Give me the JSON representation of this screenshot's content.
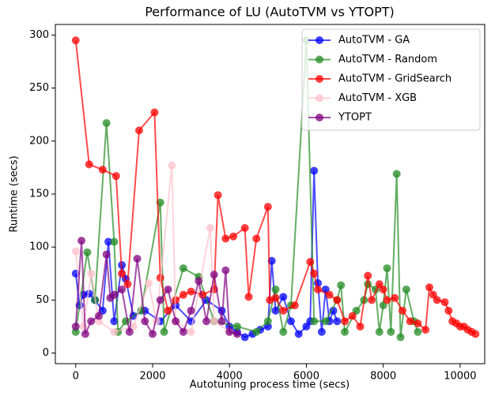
{
  "chart_data": {
    "type": "line",
    "title": "Performance of LU (AutoTVM vs YTOPT)",
    "x_label": "Autotuning process time (secs)",
    "y_label": "Runtime (secs)",
    "xlim": [
      -530,
      10640
    ],
    "ylim": [
      -10,
      310
    ],
    "xticks": [
      0,
      2000,
      4000,
      6000,
      8000,
      10000
    ],
    "yticks": [
      0,
      50,
      100,
      150,
      200,
      250,
      300
    ],
    "legend": "upper right",
    "series": [
      {
        "name": "AutoTVM - GA",
        "color": "#0000ff",
        "x": [
          0,
          100,
          200,
          350,
          500,
          700,
          850,
          1000,
          1200,
          1300,
          1500,
          1800,
          2200,
          2600,
          3000,
          3400,
          3800,
          4000,
          4200,
          4400,
          4600,
          4800,
          5000,
          5100,
          5200,
          5400,
          5600,
          5800,
          6000,
          6100,
          6200,
          6300,
          6400,
          6500,
          6600,
          6700,
          6800
        ],
        "values": [
          75,
          45,
          55,
          56,
          50,
          40,
          105,
          30,
          83,
          70,
          35,
          40,
          30,
          45,
          30,
          50,
          40,
          25,
          20,
          15,
          18,
          22,
          25,
          87,
          40,
          53,
          30,
          18,
          25,
          30,
          172,
          66,
          20,
          60,
          30,
          40,
          30
        ]
      },
      {
        "name": "AutoTVM - Random",
        "color": "#228b22",
        "x": [
          0,
          300,
          500,
          800,
          1000,
          1100,
          1300,
          1700,
          2200,
          2300,
          2800,
          3200,
          3600,
          4200,
          4700,
          5000,
          5200,
          5400,
          5600,
          6000,
          6200,
          6500,
          6800,
          6900,
          7000,
          7300,
          7500,
          7600,
          7800,
          7900,
          8000,
          8100,
          8200,
          8350,
          8450,
          8600,
          8800,
          8900
        ],
        "values": [
          20,
          95,
          50,
          217,
          105,
          20,
          30,
          40,
          142,
          20,
          80,
          72,
          30,
          25,
          20,
          30,
          60,
          20,
          45,
          295,
          30,
          30,
          50,
          64,
          20,
          40,
          50,
          65,
          60,
          20,
          45,
          80,
          20,
          169,
          15,
          60,
          30,
          20
        ]
      },
      {
        "name": "AutoTVM - GridSearch",
        "color": "#ff0000",
        "x": [
          0,
          350,
          700,
          1050,
          1200,
          1350,
          1650,
          2050,
          2200,
          2400,
          2600,
          2800,
          3000,
          3300,
          3600,
          3700,
          3900,
          4100,
          4400,
          4500,
          4700,
          5000,
          5050,
          5200,
          5400,
          5700,
          6100,
          6200,
          6300,
          6600,
          6800,
          7000,
          7200,
          7400,
          7600,
          7700,
          7900,
          8000,
          8100,
          8300,
          8500,
          8700,
          8900,
          9100,
          9200,
          9300,
          9400,
          9600,
          9700,
          9800,
          9900,
          10000,
          10100,
          10200,
          10300,
          10400
        ],
        "values": [
          295,
          178,
          173,
          167,
          75,
          65,
          210,
          227,
          71,
          40,
          50,
          55,
          58,
          55,
          60,
          149,
          108,
          110,
          118,
          53,
          108,
          138,
          50,
          52,
          40,
          45,
          86,
          75,
          60,
          55,
          50,
          30,
          35,
          25,
          73,
          50,
          65,
          60,
          50,
          52,
          40,
          30,
          28,
          22,
          62,
          55,
          50,
          48,
          40,
          30,
          28,
          25,
          25,
          22,
          20,
          18
        ]
      },
      {
        "name": "AutoTVM - XGB",
        "color": "#ffc0cb",
        "x": [
          0,
          200,
          400,
          600,
          1000,
          1500,
          1900,
          2100,
          2500,
          2600,
          3000,
          3500,
          3600,
          4000
        ],
        "values": [
          96,
          25,
          75,
          30,
          20,
          25,
          66,
          30,
          177,
          30,
          20,
          118,
          30,
          20
        ]
      },
      {
        "name": "YTOPT",
        "color": "#800080",
        "x": [
          0,
          150,
          250,
          400,
          600,
          800,
          900,
          1000,
          1200,
          1400,
          1600,
          1800,
          2000,
          2200,
          2400,
          2600,
          2800,
          3000,
          3200,
          3400,
          3600,
          3800,
          3900,
          4000,
          4200
        ],
        "values": [
          25,
          106,
          18,
          30,
          35,
          93,
          52,
          55,
          60,
          20,
          89,
          30,
          18,
          50,
          60,
          30,
          20,
          40,
          68,
          30,
          74,
          30,
          78,
          20,
          18
        ]
      }
    ]
  }
}
